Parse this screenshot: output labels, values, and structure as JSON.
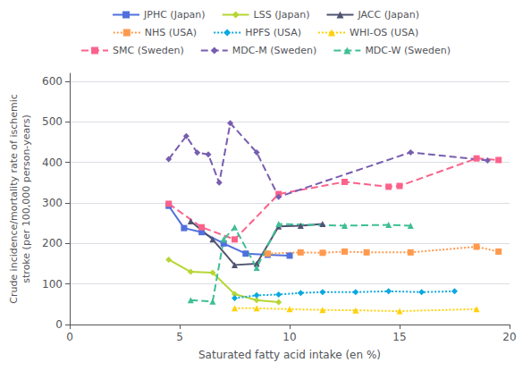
{
  "chart_data": {
    "type": "line",
    "xlabel": "Saturated fatty acid intake (en %)",
    "ylabel": "Crude incidence/mortality rate of ischemic\nstroke (per 100,000 person-years)",
    "xlim": [
      0,
      20
    ],
    "ylim": [
      0,
      620
    ],
    "xticks": [
      0,
      5,
      10,
      15,
      20
    ],
    "yticks": [
      0,
      100,
      200,
      300,
      400,
      500,
      600
    ],
    "grid": true,
    "legend": "top",
    "series": [
      {
        "name": "JPHC (Japan)",
        "marker": "square",
        "line_style": "solid",
        "x": [
          4.5,
          5.2,
          6.0,
          7.0,
          8.0,
          9.0,
          10.0
        ],
        "values": [
          293,
          238,
          228,
          200,
          175,
          172,
          170
        ]
      },
      {
        "name": "LSS (Japan)",
        "marker": "diamond",
        "line_style": "solid",
        "x": [
          4.5,
          5.5,
          6.5,
          7.5,
          8.5,
          9.5
        ],
        "values": [
          160,
          130,
          128,
          75,
          60,
          55
        ]
      },
      {
        "name": "JACC (Japan)",
        "marker": "triangle",
        "line_style": "solid",
        "x": [
          5.5,
          6.5,
          7.5,
          8.5,
          9.5,
          10.5,
          11.5
        ],
        "values": [
          255,
          210,
          147,
          150,
          242,
          244,
          248
        ]
      },
      {
        "name": "NHS (USA)",
        "marker": "square",
        "line_style": "dotted",
        "x": [
          9.0,
          10.5,
          11.5,
          12.5,
          13.5,
          15.5,
          18.5,
          19.5
        ],
        "values": [
          175,
          178,
          177,
          180,
          178,
          178,
          192,
          180
        ]
      },
      {
        "name": "HPFS (USA)",
        "marker": "diamond",
        "line_style": "dotted",
        "x": [
          7.5,
          8.5,
          9.5,
          10.5,
          11.5,
          13.0,
          14.5,
          16.0,
          17.5
        ],
        "values": [
          65,
          72,
          74,
          78,
          80,
          80,
          82,
          80,
          82
        ]
      },
      {
        "name": "WHI-OS (USA)",
        "marker": "triangle",
        "line_style": "dotted",
        "x": [
          7.5,
          8.5,
          10.0,
          11.5,
          13.0,
          15.0,
          18.5
        ],
        "values": [
          40,
          40,
          38,
          36,
          35,
          33,
          38
        ]
      },
      {
        "name": "SMC (Sweden)",
        "marker": "square",
        "line_style": "dashed",
        "x": [
          4.5,
          6.0,
          7.5,
          9.5,
          12.5,
          14.5,
          15.0,
          18.5,
          19.5
        ],
        "values": [
          298,
          240,
          210,
          322,
          352,
          340,
          342,
          410,
          406
        ]
      },
      {
        "name": "MDC-M (Sweden)",
        "marker": "diamond",
        "line_style": "dashed",
        "x": [
          4.5,
          5.3,
          5.8,
          6.3,
          6.8,
          7.3,
          8.5,
          9.5,
          15.5,
          19.0
        ],
        "values": [
          408,
          465,
          424,
          420,
          350,
          497,
          425,
          315,
          425,
          405
        ]
      },
      {
        "name": "MDC-W (Sweden)",
        "marker": "triangle",
        "line_style": "dashed",
        "x": [
          5.5,
          6.5,
          7.0,
          7.5,
          8.5,
          9.5,
          12.5,
          14.5,
          15.5
        ],
        "values": [
          60,
          57,
          210,
          240,
          140,
          248,
          244,
          246,
          244
        ]
      }
    ]
  }
}
